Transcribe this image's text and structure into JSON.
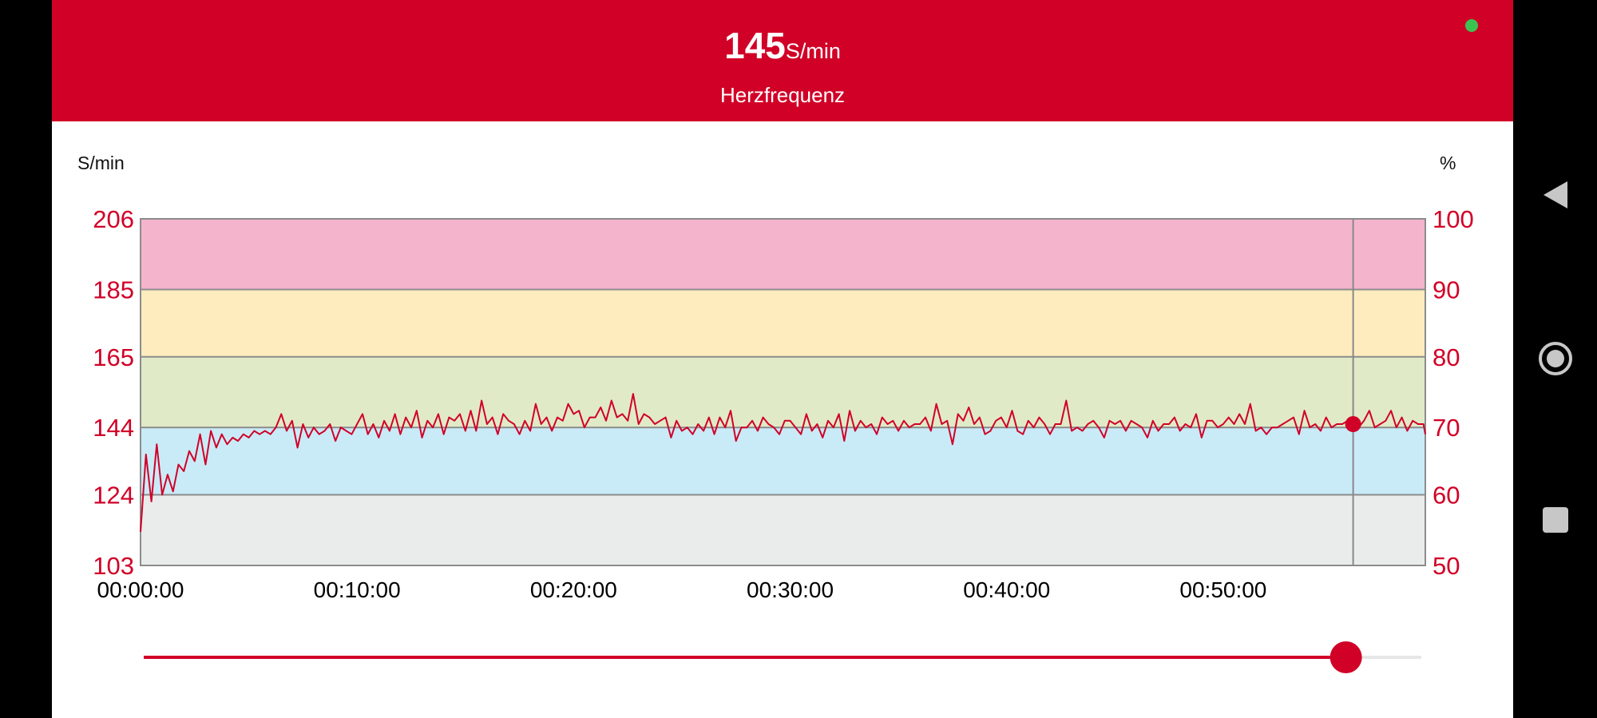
{
  "header": {
    "heart_rate_value": "145",
    "heart_rate_unit": "S/min",
    "label": "Herzfrequenz",
    "status_color": "#3cc251"
  },
  "colors": {
    "accent": "#d10027",
    "zone_pink": "#f4b4cb",
    "zone_yellow": "#feecbf",
    "zone_green": "#e1eac7",
    "zone_blue": "#c9ebf8",
    "zone_grey": "#eaeceb"
  },
  "chart_data": {
    "type": "line",
    "left_axis_unit": "S/min",
    "right_axis_unit": "%",
    "y_ticks_left": [
      "206",
      "185",
      "165",
      "144",
      "124",
      "103"
    ],
    "y_ticks_right": [
      "100",
      "90",
      "80",
      "70",
      "60",
      "50"
    ],
    "ylim": [
      103,
      206
    ],
    "xlim_seconds": [
      0,
      3560
    ],
    "x_ticks": [
      "00:00:00",
      "00:10:00",
      "00:20:00",
      "00:30:00",
      "00:40:00",
      "00:50:00"
    ],
    "zones": [
      {
        "from": 185,
        "to": 206,
        "color": "pink"
      },
      {
        "from": 165,
        "to": 185,
        "color": "yellow"
      },
      {
        "from": 144,
        "to": 165,
        "color": "green"
      },
      {
        "from": 124,
        "to": 144,
        "color": "blue"
      },
      {
        "from": 103,
        "to": 124,
        "color": "grey"
      }
    ],
    "series": [
      {
        "points": [
          [
            0,
            113
          ],
          [
            15,
            136
          ],
          [
            30,
            122
          ],
          [
            45,
            139
          ],
          [
            60,
            124
          ],
          [
            75,
            130
          ],
          [
            90,
            125
          ],
          [
            105,
            133
          ],
          [
            120,
            131
          ],
          [
            135,
            137
          ],
          [
            150,
            134
          ],
          [
            165,
            142
          ],
          [
            180,
            133
          ],
          [
            195,
            143
          ],
          [
            210,
            138
          ],
          [
            225,
            142
          ],
          [
            240,
            139
          ],
          [
            255,
            141
          ],
          [
            270,
            140
          ],
          [
            285,
            142
          ],
          [
            300,
            141
          ],
          [
            315,
            143
          ],
          [
            330,
            142
          ],
          [
            345,
            143
          ],
          [
            360,
            142
          ],
          [
            375,
            144
          ],
          [
            390,
            148
          ],
          [
            405,
            143
          ],
          [
            420,
            146
          ],
          [
            435,
            138
          ],
          [
            450,
            145
          ],
          [
            465,
            141
          ],
          [
            480,
            144
          ],
          [
            495,
            142
          ],
          [
            510,
            143
          ],
          [
            525,
            145
          ],
          [
            540,
            140
          ],
          [
            555,
            144
          ],
          [
            570,
            143
          ],
          [
            585,
            142
          ],
          [
            600,
            145
          ],
          [
            615,
            148
          ],
          [
            630,
            142
          ],
          [
            645,
            145
          ],
          [
            660,
            141
          ],
          [
            675,
            146
          ],
          [
            690,
            143
          ],
          [
            705,
            148
          ],
          [
            720,
            142
          ],
          [
            735,
            147
          ],
          [
            750,
            144
          ],
          [
            765,
            149
          ],
          [
            780,
            141
          ],
          [
            795,
            146
          ],
          [
            810,
            144
          ],
          [
            825,
            148
          ],
          [
            840,
            142
          ],
          [
            855,
            147
          ],
          [
            870,
            146
          ],
          [
            885,
            148
          ],
          [
            900,
            143
          ],
          [
            915,
            149
          ],
          [
            930,
            143
          ],
          [
            945,
            152
          ],
          [
            960,
            145
          ],
          [
            975,
            147
          ],
          [
            990,
            142
          ],
          [
            1005,
            148
          ],
          [
            1020,
            146
          ],
          [
            1035,
            145
          ],
          [
            1050,
            142
          ],
          [
            1065,
            146
          ],
          [
            1080,
            143
          ],
          [
            1095,
            151
          ],
          [
            1110,
            145
          ],
          [
            1125,
            147
          ],
          [
            1140,
            143
          ],
          [
            1155,
            147
          ],
          [
            1170,
            146
          ],
          [
            1185,
            151
          ],
          [
            1200,
            148
          ],
          [
            1215,
            149
          ],
          [
            1230,
            144
          ],
          [
            1245,
            147
          ],
          [
            1260,
            147
          ],
          [
            1275,
            150
          ],
          [
            1290,
            146
          ],
          [
            1305,
            152
          ],
          [
            1320,
            147
          ],
          [
            1335,
            148
          ],
          [
            1350,
            146
          ],
          [
            1365,
            154
          ],
          [
            1380,
            145
          ],
          [
            1395,
            148
          ],
          [
            1410,
            147
          ],
          [
            1425,
            145
          ],
          [
            1440,
            146
          ],
          [
            1455,
            147
          ],
          [
            1470,
            141
          ],
          [
            1485,
            146
          ],
          [
            1500,
            143
          ],
          [
            1515,
            144
          ],
          [
            1530,
            142
          ],
          [
            1545,
            145
          ],
          [
            1560,
            143
          ],
          [
            1575,
            147
          ],
          [
            1590,
            142
          ],
          [
            1605,
            147
          ],
          [
            1620,
            144
          ],
          [
            1635,
            149
          ],
          [
            1650,
            140
          ],
          [
            1665,
            144
          ],
          [
            1680,
            144
          ],
          [
            1695,
            146
          ],
          [
            1710,
            143
          ],
          [
            1725,
            147
          ],
          [
            1740,
            145
          ],
          [
            1755,
            144
          ],
          [
            1770,
            142
          ],
          [
            1785,
            146
          ],
          [
            1800,
            146
          ],
          [
            1815,
            144
          ],
          [
            1830,
            142
          ],
          [
            1845,
            148
          ],
          [
            1860,
            143
          ],
          [
            1875,
            145
          ],
          [
            1890,
            141
          ],
          [
            1905,
            146
          ],
          [
            1920,
            144
          ],
          [
            1935,
            148
          ],
          [
            1950,
            140
          ],
          [
            1965,
            149
          ],
          [
            1980,
            143
          ],
          [
            1995,
            146
          ],
          [
            2010,
            144
          ],
          [
            2025,
            145
          ],
          [
            2040,
            142
          ],
          [
            2055,
            147
          ],
          [
            2070,
            145
          ],
          [
            2085,
            146
          ],
          [
            2100,
            143
          ],
          [
            2115,
            146
          ],
          [
            2130,
            144
          ],
          [
            2145,
            145
          ],
          [
            2160,
            145
          ],
          [
            2175,
            147
          ],
          [
            2190,
            143
          ],
          [
            2205,
            151
          ],
          [
            2220,
            145
          ],
          [
            2235,
            146
          ],
          [
            2250,
            139
          ],
          [
            2265,
            148
          ],
          [
            2280,
            146
          ],
          [
            2295,
            150
          ],
          [
            2310,
            145
          ],
          [
            2325,
            147
          ],
          [
            2340,
            142
          ],
          [
            2355,
            143
          ],
          [
            2370,
            146
          ],
          [
            2385,
            147
          ],
          [
            2400,
            144
          ],
          [
            2415,
            149
          ],
          [
            2430,
            143
          ],
          [
            2445,
            142
          ],
          [
            2460,
            146
          ],
          [
            2475,
            144
          ],
          [
            2490,
            147
          ],
          [
            2505,
            145
          ],
          [
            2520,
            142
          ],
          [
            2535,
            145
          ],
          [
            2550,
            145
          ],
          [
            2565,
            152
          ],
          [
            2580,
            143
          ],
          [
            2595,
            144
          ],
          [
            2610,
            143
          ],
          [
            2625,
            145
          ],
          [
            2640,
            146
          ],
          [
            2655,
            144
          ],
          [
            2670,
            141
          ],
          [
            2685,
            146
          ],
          [
            2700,
            145
          ],
          [
            2715,
            146
          ],
          [
            2730,
            143
          ],
          [
            2745,
            146
          ],
          [
            2760,
            145
          ],
          [
            2775,
            144
          ],
          [
            2790,
            141
          ],
          [
            2805,
            146
          ],
          [
            2820,
            143
          ],
          [
            2835,
            145
          ],
          [
            2850,
            145
          ],
          [
            2865,
            147
          ],
          [
            2880,
            143
          ],
          [
            2895,
            145
          ],
          [
            2910,
            144
          ],
          [
            2925,
            148
          ],
          [
            2940,
            141
          ],
          [
            2955,
            146
          ],
          [
            2970,
            146
          ],
          [
            2985,
            144
          ],
          [
            3000,
            145
          ],
          [
            3015,
            147
          ],
          [
            3030,
            145
          ],
          [
            3045,
            148
          ],
          [
            3060,
            145
          ],
          [
            3075,
            151
          ],
          [
            3090,
            143
          ],
          [
            3105,
            144
          ],
          [
            3120,
            142
          ],
          [
            3135,
            144
          ],
          [
            3150,
            144
          ],
          [
            3165,
            145
          ],
          [
            3180,
            146
          ],
          [
            3195,
            147
          ],
          [
            3210,
            142
          ],
          [
            3225,
            149
          ],
          [
            3240,
            144
          ],
          [
            3255,
            145
          ],
          [
            3270,
            143
          ],
          [
            3285,
            147
          ],
          [
            3300,
            144
          ],
          [
            3315,
            145
          ],
          [
            3330,
            145
          ],
          [
            3345,
            146
          ],
          [
            3360,
            145
          ],
          [
            3375,
            144
          ],
          [
            3390,
            146
          ],
          [
            3405,
            149
          ],
          [
            3420,
            144
          ],
          [
            3435,
            145
          ],
          [
            3450,
            146
          ],
          [
            3465,
            149
          ],
          [
            3480,
            144
          ],
          [
            3495,
            147
          ],
          [
            3510,
            143
          ],
          [
            3525,
            146
          ],
          [
            3540,
            145
          ],
          [
            3555,
            145
          ],
          [
            3560,
            142
          ]
        ]
      }
    ],
    "cursor": {
      "time_seconds": 3360,
      "value": 145
    }
  },
  "slider": {
    "position_fraction": 0.941
  },
  "navbar": {
    "icons": [
      "back-triangle-icon",
      "home-circle-icon",
      "recents-square-icon"
    ]
  }
}
